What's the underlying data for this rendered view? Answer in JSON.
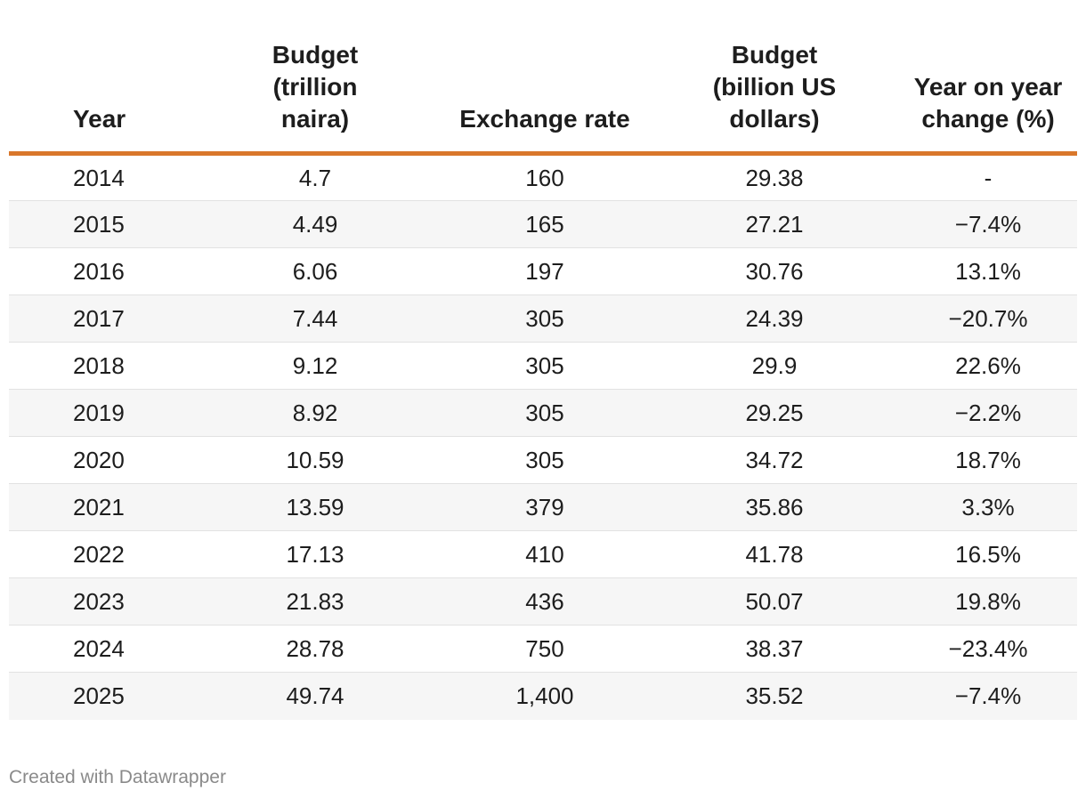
{
  "chart_data": {
    "type": "table",
    "title": "",
    "columns": [
      "Year",
      "Budget (trillion naira)",
      "Exchange rate",
      "Budget (billion US dollars)",
      "Year on year change (%)"
    ],
    "rows": [
      {
        "year": "2014",
        "budget_naira": "4.7",
        "exchange_rate": "160",
        "budget_usd": "29.38",
        "yoy_change": "-"
      },
      {
        "year": "2015",
        "budget_naira": "4.49",
        "exchange_rate": "165",
        "budget_usd": "27.21",
        "yoy_change": "−7.4%"
      },
      {
        "year": "2016",
        "budget_naira": "6.06",
        "exchange_rate": "197",
        "budget_usd": "30.76",
        "yoy_change": "13.1%"
      },
      {
        "year": "2017",
        "budget_naira": "7.44",
        "exchange_rate": "305",
        "budget_usd": "24.39",
        "yoy_change": "−20.7%"
      },
      {
        "year": "2018",
        "budget_naira": "9.12",
        "exchange_rate": "305",
        "budget_usd": "29.9",
        "yoy_change": "22.6%"
      },
      {
        "year": "2019",
        "budget_naira": "8.92",
        "exchange_rate": "305",
        "budget_usd": "29.25",
        "yoy_change": "−2.2%"
      },
      {
        "year": "2020",
        "budget_naira": "10.59",
        "exchange_rate": "305",
        "budget_usd": "34.72",
        "yoy_change": "18.7%"
      },
      {
        "year": "2021",
        "budget_naira": "13.59",
        "exchange_rate": "379",
        "budget_usd": "35.86",
        "yoy_change": "3.3%"
      },
      {
        "year": "2022",
        "budget_naira": "17.13",
        "exchange_rate": "410",
        "budget_usd": "41.78",
        "yoy_change": "16.5%"
      },
      {
        "year": "2023",
        "budget_naira": "21.83",
        "exchange_rate": "436",
        "budget_usd": "50.07",
        "yoy_change": "19.8%"
      },
      {
        "year": "2024",
        "budget_naira": "28.78",
        "exchange_rate": "750",
        "budget_usd": "38.37",
        "yoy_change": "−23.4%"
      },
      {
        "year": "2025",
        "budget_naira": "49.74",
        "exchange_rate": "1,400",
        "budget_usd": "35.52",
        "yoy_change": "−7.4%"
      }
    ]
  },
  "header": {
    "year": "Year",
    "budget_naira": "Budget (trillion naira)",
    "exchange_rate": "Exchange rate",
    "budget_usd": "Budget (billion US dollars)",
    "yoy_change": "Year on year change (%)"
  },
  "footer": {
    "credit": "Created with Datawrapper"
  },
  "colors": {
    "header_rule": "#d9772b",
    "row_stripe": "#f6f6f6",
    "footer_text": "#8a8a8a"
  }
}
